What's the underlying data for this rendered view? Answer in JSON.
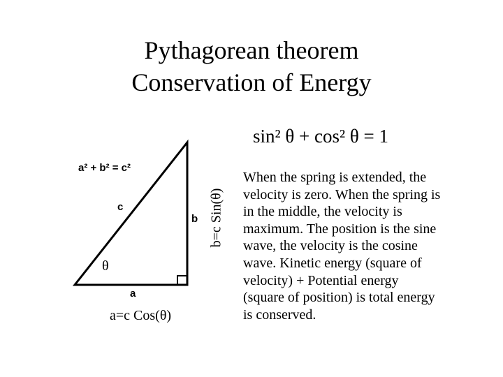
{
  "title": [
    "Pythagorean theorem",
    "Conservation of Energy"
  ],
  "equation": "sin² θ + cos² θ = 1",
  "triangle": {
    "formula": "a² + b² = c²",
    "hypotenuse": "c",
    "side_b": "b",
    "side_a": "a",
    "angle": "θ",
    "a_label": "a=c Cos(θ)",
    "b_label": "b=c Sin(θ)"
  },
  "paragraph": [
    "When the spring is extended, the",
    "velocity is zero.  When the spring is",
    "in the middle, the velocity is",
    "maximum.   The position is the sine",
    "wave, the velocity is the cosine",
    "wave.  Kinetic energy (square of",
    "velocity) + Potential energy",
    "(square of position) is total energy",
    "is conserved."
  ]
}
